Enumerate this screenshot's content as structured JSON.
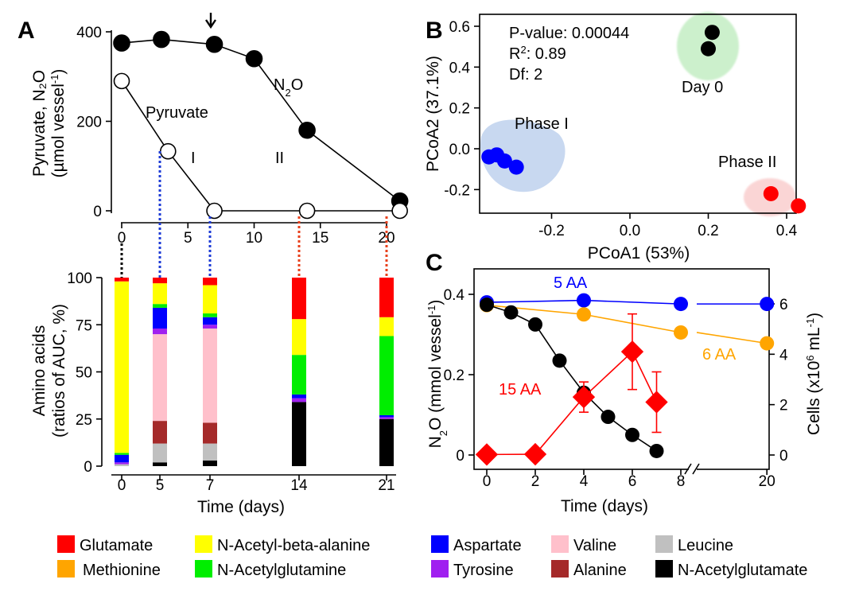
{
  "panels": {
    "a": "A",
    "b": "B",
    "c": "C"
  },
  "legend": [
    {
      "label": "Glutamate",
      "color": "#ff0000"
    },
    {
      "label": "N-Acetyl-beta-alanine",
      "color": "#ffff00"
    },
    {
      "label": "Aspartate",
      "color": "#0000ff"
    },
    {
      "label": "Valine",
      "color": "#ffc0cb"
    },
    {
      "label": "Leucine",
      "color": "#c0c0c0"
    },
    {
      "label": "Methionine",
      "color": "#ffa500"
    },
    {
      "label": "N-Acetylglutamine",
      "color": "#00ee00"
    },
    {
      "label": "Tyrosine",
      "color": "#a020f0"
    },
    {
      "label": "Alanine",
      "color": "#a52a2a"
    },
    {
      "label": "N-Acetylglutamate",
      "color": "#000000"
    }
  ],
  "chart_data": [
    {
      "id": "A-top",
      "type": "line",
      "ylabel_line1": "Pyruvate, N₂O",
      "ylabel_line2_prefix": "(µmol vessel",
      "ylabel_line2_sup": "-1",
      "ylabel_line2_suffix": ")",
      "xlim": [
        -1,
        22
      ],
      "ylim": [
        -30,
        420
      ],
      "xticks": [
        "0",
        "5",
        "10",
        "15",
        "20"
      ],
      "yticks": [
        "0",
        "200",
        "400"
      ],
      "annotations": {
        "pyruvate": "Pyruvate",
        "n2o_main": "N",
        "n2o_sub": "2",
        "n2o_end": "O",
        "phase1": "I",
        "phase2": "II"
      },
      "series": [
        {
          "name": "N2O",
          "marker": "filled",
          "x": [
            0,
            3,
            7,
            10,
            14,
            21
          ],
          "y": [
            375,
            383,
            372,
            340,
            180,
            22
          ]
        },
        {
          "name": "Pyruvate",
          "marker": "open",
          "x": [
            0,
            3.5,
            7,
            14,
            21
          ],
          "y": [
            290,
            133,
            0,
            0,
            0
          ]
        }
      ],
      "arrow_x": 7
    },
    {
      "id": "A-bottom",
      "type": "bar",
      "stacked": true,
      "ylabel_line1": "Amino acids",
      "ylabel_line2": "(ratios of AUC, %)",
      "xlabel": "Time (days)",
      "ylim": [
        0,
        100
      ],
      "yticks": [
        "0",
        "25",
        "50",
        "75",
        "100"
      ],
      "categories": [
        "0",
        "5",
        "7",
        "14",
        "21"
      ],
      "stack_order": [
        "N-Acetylglutamate",
        "Leucine",
        "Alanine",
        "Valine",
        "Tyrosine",
        "Aspartate",
        "N-Acetylglutamine",
        "Methionine",
        "N-Acetyl-beta-alanine",
        "Glutamate"
      ],
      "bars": [
        [
          0,
          1,
          0,
          0,
          1,
          4,
          1,
          0,
          91,
          2
        ],
        [
          2,
          10,
          12,
          46,
          3,
          11,
          2,
          0,
          11,
          3
        ],
        [
          3,
          9,
          11,
          50,
          2,
          4,
          2,
          0,
          15,
          4
        ],
        [
          34,
          0,
          0,
          0,
          2,
          2,
          21,
          0,
          19,
          22
        ],
        [
          25,
          0,
          0,
          0,
          1,
          1,
          42,
          0,
          10,
          21
        ]
      ]
    },
    {
      "id": "B",
      "type": "scatter",
      "xlabel": "PCoA1 (53%)",
      "ylabel": "PCoA2 (37.1%)",
      "xlim": [
        -0.42,
        0.46
      ],
      "ylim": [
        -0.32,
        0.66
      ],
      "xticks": [
        "-0.2",
        "0.0",
        "0.2",
        "0.4"
      ],
      "yticks": [
        "-0.2",
        "0.0",
        "0.2",
        "0.4",
        "0.6"
      ],
      "stats": {
        "pvalue": "P-value: 0.00044",
        "r2_main": "R",
        "r2_sup": "2",
        "r2_end": ": 0.89",
        "df": "Df: 2"
      },
      "groups": [
        {
          "name": "Day 0",
          "color": "#000000",
          "x": [
            0.21,
            0.2
          ],
          "y": [
            0.57,
            0.49
          ]
        },
        {
          "name": "Phase I",
          "color": "#0000ff",
          "x": [
            -0.36,
            -0.34,
            -0.32,
            -0.29
          ],
          "y": [
            -0.04,
            -0.03,
            -0.06,
            -0.09
          ]
        },
        {
          "name": "Phase II",
          "color": "#ff0000",
          "x": [
            0.36,
            0.43
          ],
          "y": [
            -0.22,
            -0.28
          ]
        }
      ]
    },
    {
      "id": "C",
      "type": "line",
      "xlabel": "Time (days)",
      "ylabel_left_main": "N",
      "ylabel_left_sub": "2",
      "ylabel_left_end": "O (mmol vessel",
      "ylabel_left_sup": "-1",
      "ylabel_left_close": ")",
      "ylabel_right_prefix": "Cells (x10",
      "ylabel_right_sup1": "6",
      "ylabel_right_mid": " mL",
      "ylabel_right_sup2": "-1",
      "ylabel_right_close": ")",
      "xticks": [
        "0",
        "2",
        "4",
        "6",
        "8",
        "20"
      ],
      "yticks_left": [
        "0",
        "0.2",
        "0.4"
      ],
      "yticks_right": [
        "0",
        "2",
        "4",
        "6"
      ],
      "ylim_left": [
        -0.02,
        0.46
      ],
      "ylim_right": [
        -0.3,
        7.4
      ],
      "series": [
        {
          "name": "5 AA",
          "color": "#0000ff",
          "axis": "left",
          "x": [
            0,
            4,
            8,
            20
          ],
          "y": [
            0.38,
            0.385,
            0.376,
            0.376
          ]
        },
        {
          "name": "6 AA",
          "color": "#ffa500",
          "axis": "left",
          "x": [
            0,
            4,
            8,
            20
          ],
          "y": [
            0.373,
            0.35,
            0.305,
            0.278
          ]
        },
        {
          "name": "N2O (15 AA)",
          "color": "#000000",
          "axis": "left",
          "x": [
            0,
            1,
            2,
            3,
            4,
            5,
            6,
            7
          ],
          "y": [
            0.374,
            0.355,
            0.325,
            0.235,
            0.155,
            0.095,
            0.05,
            0.01
          ]
        },
        {
          "name": "15 AA",
          "color": "#ff0000",
          "axis": "right",
          "x": [
            0,
            2,
            4,
            6,
            7
          ],
          "y": [
            0.02,
            0.03,
            2.3,
            4.1,
            2.1
          ],
          "err": [
            0,
            0,
            0.6,
            1.5,
            1.2
          ]
        }
      ]
    }
  ]
}
